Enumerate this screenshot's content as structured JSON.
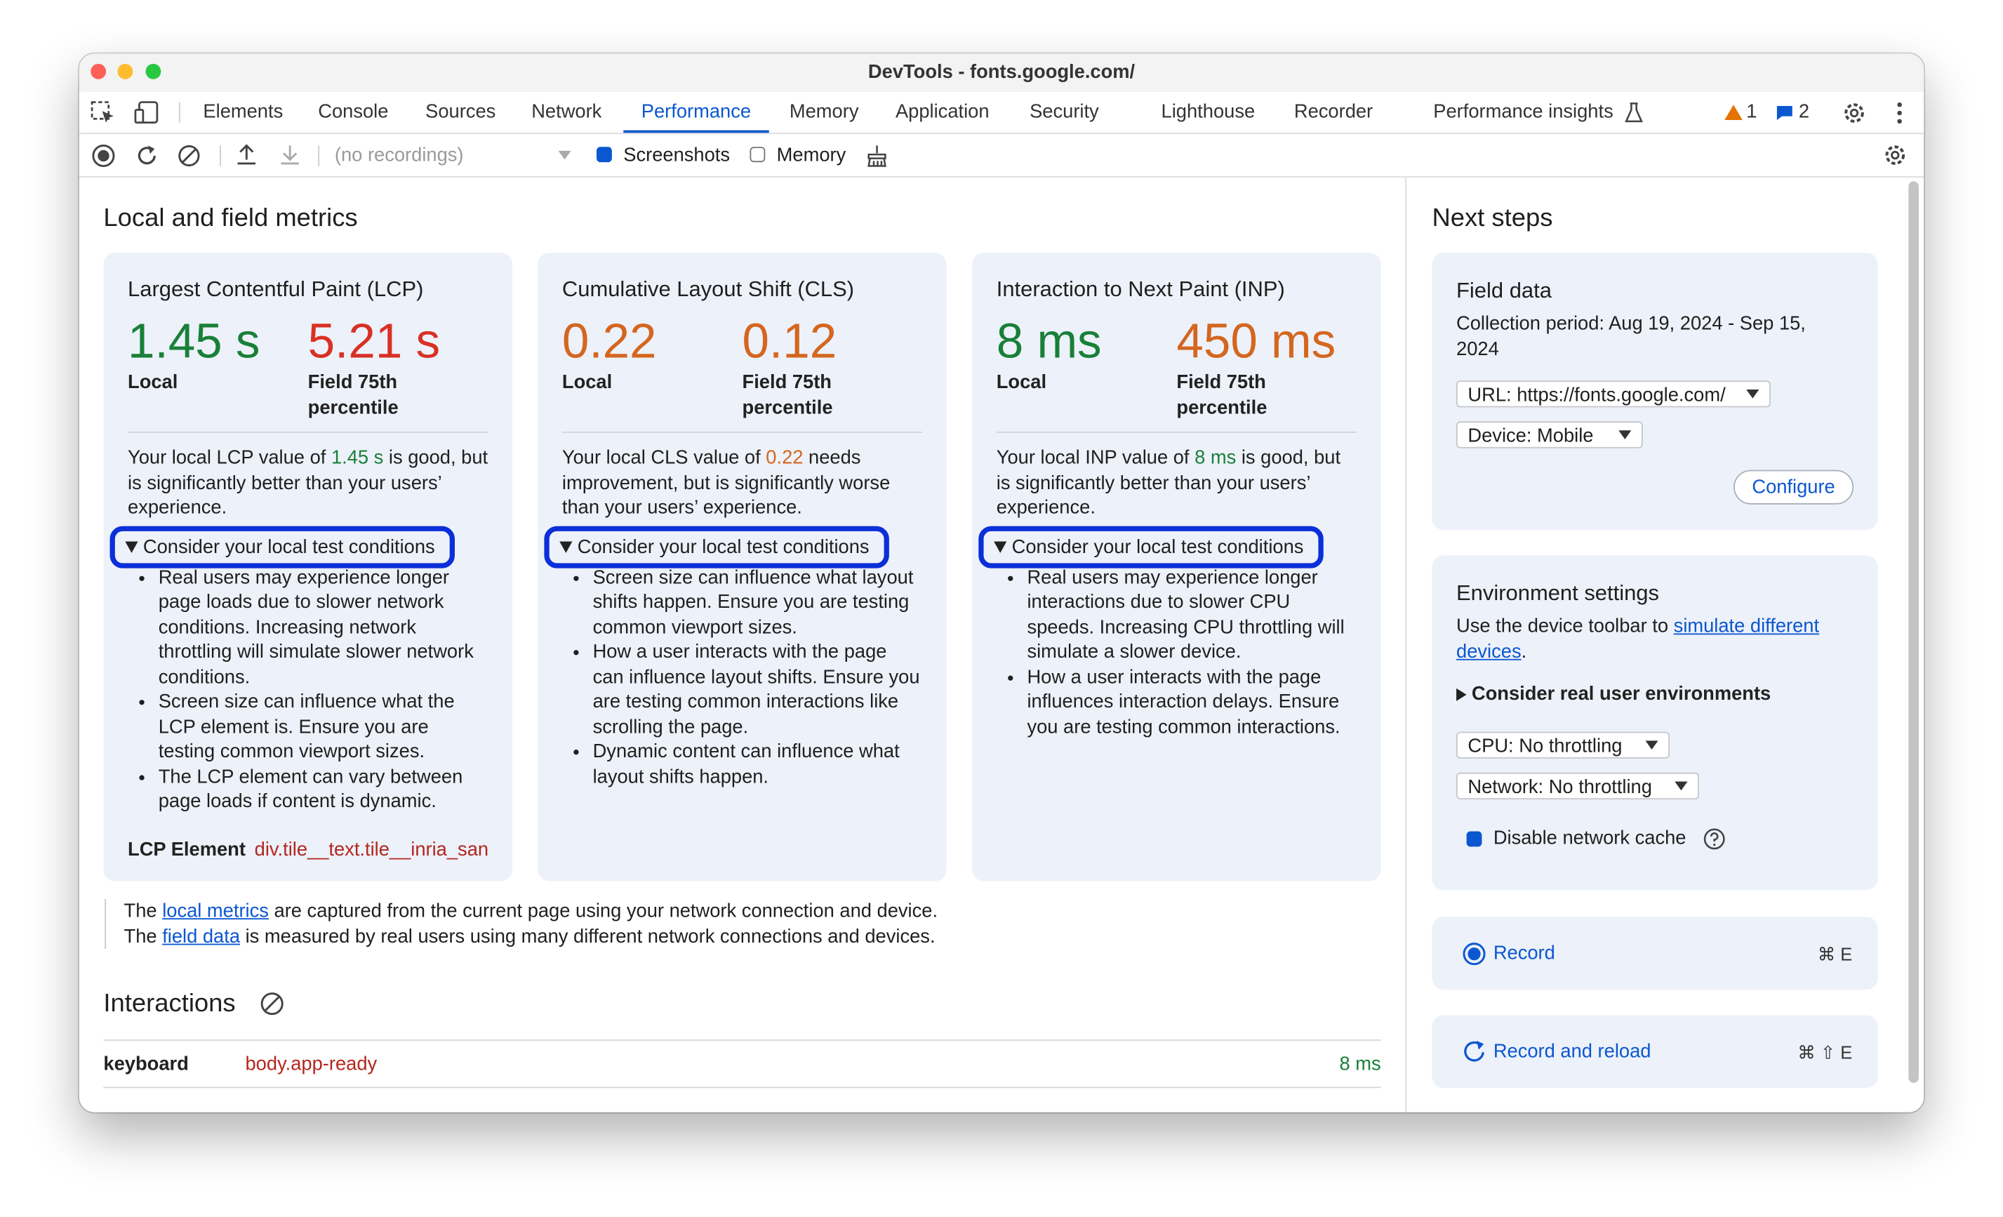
{
  "window": {
    "title": "DevTools - fonts.google.com/"
  },
  "tabs": [
    "Elements",
    "Console",
    "Sources",
    "Network",
    "Performance",
    "Memory",
    "Application",
    "Security",
    "Lighthouse",
    "Recorder",
    "Performance insights"
  ],
  "active_tab_index": 4,
  "issues": {
    "warnings": 1,
    "messages": 2
  },
  "toolbar": {
    "recordings": "(no recordings)",
    "screenshots": "Screenshots",
    "screenshots_checked": true,
    "memory": "Memory",
    "memory_checked": false
  },
  "metrics": {
    "title": "Local and field metrics",
    "cards": [
      {
        "title": "Largest Contentful Paint (LCP)",
        "local": "1.45 s",
        "local_label": "Local",
        "local_color": "#188038",
        "field": "5.21 s",
        "field_label": "Field 75th percentile",
        "field_color": "#d93025",
        "summary": [
          "Your local LCP value of ",
          "1.45 s",
          " is good, but is significantly better than your users’ experience."
        ],
        "conditions": "Consider your local test conditions",
        "bullets": [
          "Real users may experience longer page loads due to slower network conditions. Increasing network throttling will simulate slower network conditions.",
          "Screen size can influence what the LCP element is. Ensure you are testing common viewport sizes.",
          "The LCP element can vary between page loads if content is dynamic."
        ]
      },
      {
        "title": "Cumulative Layout Shift (CLS)",
        "local": "0.22",
        "local_label": "Local",
        "local_color": "#d4661f",
        "field": "0.12",
        "field_label": "Field 75th percentile",
        "field_color": "#d4661f",
        "summary": [
          "Your local CLS value of ",
          "0.22",
          " needs improvement, but is significantly worse than your users’ experience."
        ],
        "conditions": "Consider your local test conditions",
        "bullets": [
          "Screen size can influence what layout shifts happen. Ensure you are testing common viewport sizes.",
          "How a user interacts with the page can influence layout shifts. Ensure you are testing common interactions like scrolling the page.",
          "Dynamic content can influence what layout shifts happen."
        ]
      },
      {
        "title": "Interaction to Next Paint (INP)",
        "local": "8 ms",
        "local_label": "Local",
        "local_color": "#188038",
        "field": "450 ms",
        "field_label": "Field 75th percentile",
        "field_color": "#d4661f",
        "summary": [
          "Your local INP value of ",
          "8 ms",
          " is good, but is significantly better than your users’ experience."
        ],
        "conditions": "Consider your local test conditions",
        "bullets": [
          "Real users may experience longer interactions due to slower CPU speeds. Increasing CPU throttling will simulate a slower device.",
          "How a user interacts with the page influences interaction delays. Ensure you are testing common interactions."
        ]
      }
    ],
    "lcp_element": {
      "label": "LCP Element",
      "value": "div.tile__text.tile__inria_san"
    }
  },
  "note": [
    [
      "The ",
      "local metrics",
      " are captured from the current page using your network connection and device."
    ],
    [
      "The ",
      "field data",
      " is measured by real users using many different network connections and devices."
    ]
  ],
  "interactions": {
    "title": "Interactions",
    "rows": [
      {
        "type": "keyboard",
        "target": "body.app-ready",
        "duration": "8 ms"
      }
    ]
  },
  "next_steps": {
    "title": "Next steps",
    "field_data": {
      "title": "Field data",
      "period": "Collection period: Aug 19, 2024 - Sep 15, 2024",
      "url": "URL: https://fonts.google.com/",
      "device": "Device: Mobile",
      "configure": "Configure"
    },
    "environment": {
      "title": "Environment settings",
      "text": [
        "Use the device toolbar to ",
        "simulate different devices",
        "."
      ],
      "consider": "Consider real user environments",
      "cpu": "CPU: No throttling",
      "network": "Network: No throttling",
      "cache": "Disable network cache",
      "cache_checked": true
    },
    "record": {
      "label": "Record",
      "shortcut": "⌘ E"
    },
    "record_reload": {
      "label": "Record and reload",
      "shortcut": "⌘ ⇧ E"
    }
  }
}
